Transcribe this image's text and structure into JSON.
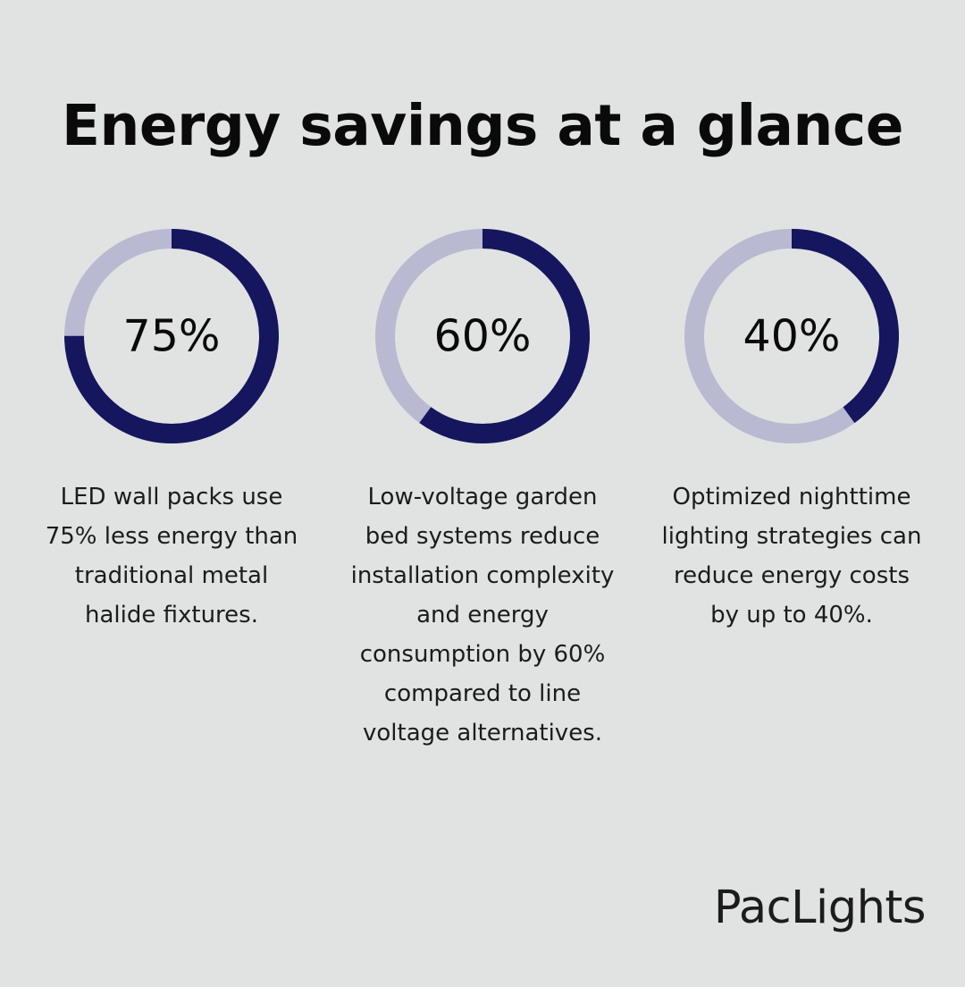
{
  "title": "Energy savings at a glance",
  "colors": {
    "background": "#e1e3e2",
    "ring_fill": "#15165e",
    "ring_track": "#b9b9d1"
  },
  "chart_data": {
    "type": "donut",
    "items": [
      {
        "label": "75%",
        "value": 75,
        "description": "LED wall packs use 75% less energy than traditional metal halide fixtures."
      },
      {
        "label": "60%",
        "value": 60,
        "description": "Low-voltage garden bed systems reduce installation complexity and energy consumption by 60% compared to line voltage alternatives."
      },
      {
        "label": "40%",
        "value": 40,
        "description": "Optimized nighttime lighting strategies can reduce energy costs by up to 40%."
      }
    ]
  },
  "brand": "PacLights"
}
